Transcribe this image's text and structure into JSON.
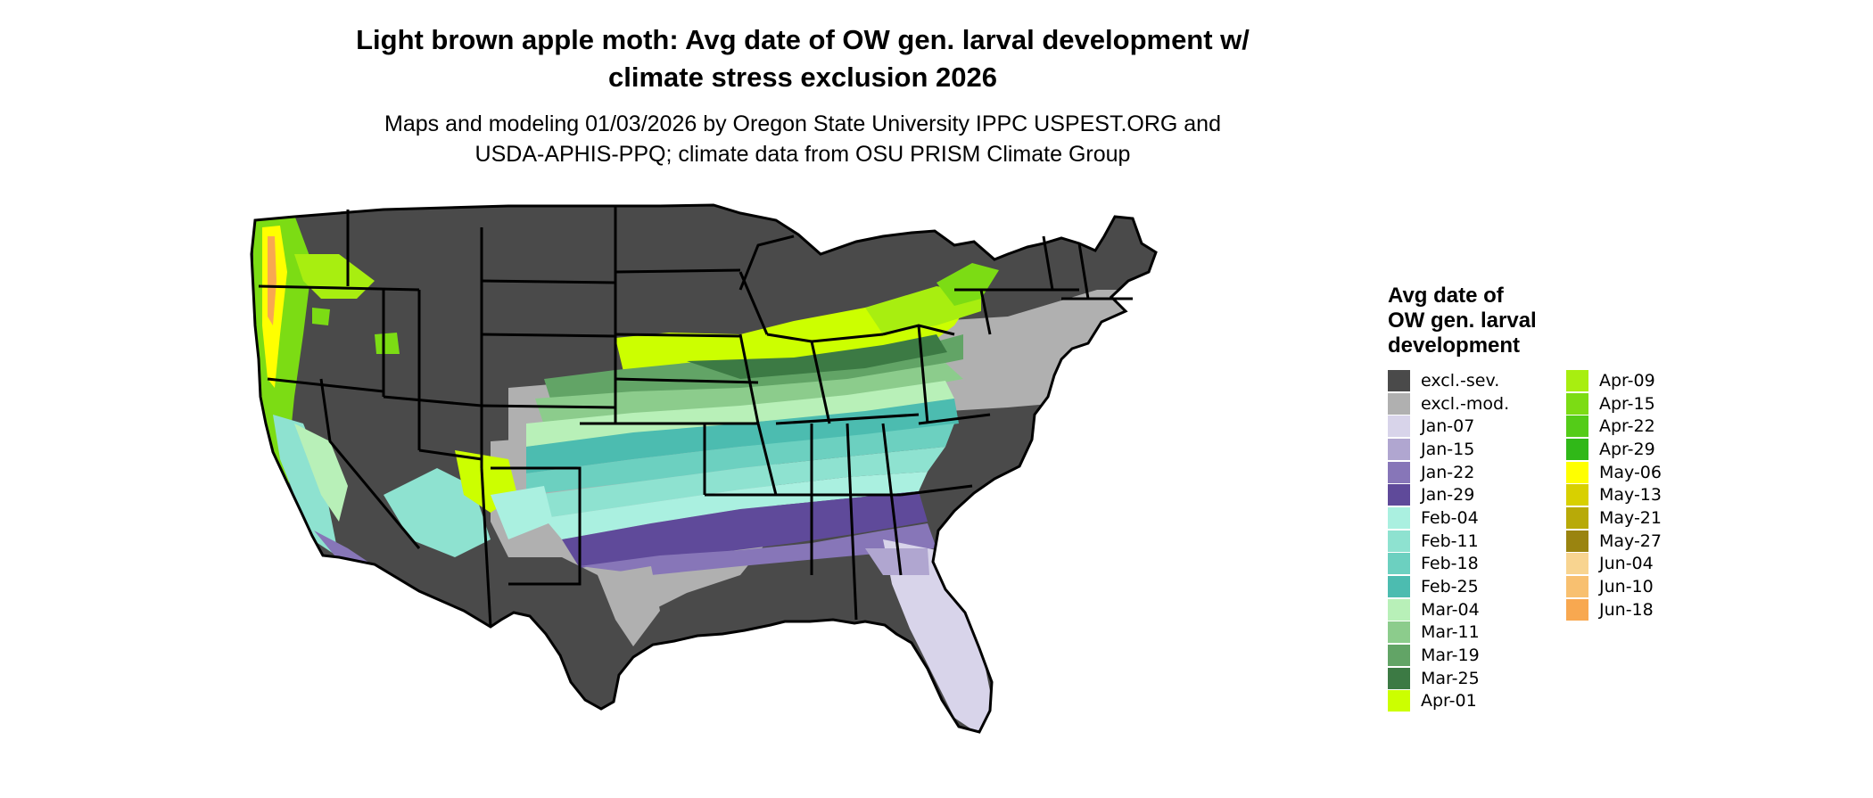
{
  "title": {
    "line1": "Light brown apple moth: Avg date of OW gen. larval development w/",
    "line2": "climate stress exclusion 2026"
  },
  "subtitle": {
    "line1": "Maps and modeling 01/03/2026 by Oregon State University IPPC USPEST.ORG and",
    "line2": "USDA-APHIS-PPQ; climate data from OSU PRISM Climate Group"
  },
  "legend": {
    "title_line1": "Avg date of",
    "title_line2": "OW gen. larval",
    "title_line3": "development",
    "col1": [
      {
        "label": "excl.-sev.",
        "color": "#4a4a4a"
      },
      {
        "label": "excl.-mod.",
        "color": "#b0b0b0"
      },
      {
        "label": "Jan-07",
        "color": "#d8d4ea"
      },
      {
        "label": "Jan-15",
        "color": "#b0a6d0"
      },
      {
        "label": "Jan-22",
        "color": "#8776b8"
      },
      {
        "label": "Jan-29",
        "color": "#5f4a9a"
      },
      {
        "label": "Feb-04",
        "color": "#aaf0e0"
      },
      {
        "label": "Feb-11",
        "color": "#8ee2d0"
      },
      {
        "label": "Feb-18",
        "color": "#6cd0c0"
      },
      {
        "label": "Feb-25",
        "color": "#4cbcb0"
      },
      {
        "label": "Mar-04",
        "color": "#b8f0b8"
      },
      {
        "label": "Mar-11",
        "color": "#8ccc8c"
      },
      {
        "label": "Mar-19",
        "color": "#62a466"
      },
      {
        "label": "Mar-25",
        "color": "#3c7a44"
      },
      {
        "label": "Apr-01",
        "color": "#ccff00"
      }
    ],
    "col2": [
      {
        "label": "Apr-09",
        "color": "#a8ee10"
      },
      {
        "label": "Apr-15",
        "color": "#7cdc14"
      },
      {
        "label": "Apr-22",
        "color": "#54cc18"
      },
      {
        "label": "Apr-29",
        "color": "#30b818"
      },
      {
        "label": "May-06",
        "color": "#ffff00"
      },
      {
        "label": "May-13",
        "color": "#d8d000"
      },
      {
        "label": "May-21",
        "color": "#b8aa08"
      },
      {
        "label": "May-27",
        "color": "#9a8410"
      },
      {
        "label": "Jun-04",
        "color": "#f8d490"
      },
      {
        "label": "Jun-10",
        "color": "#f8c070"
      },
      {
        "label": "Jun-18",
        "color": "#f8a850"
      }
    ]
  }
}
